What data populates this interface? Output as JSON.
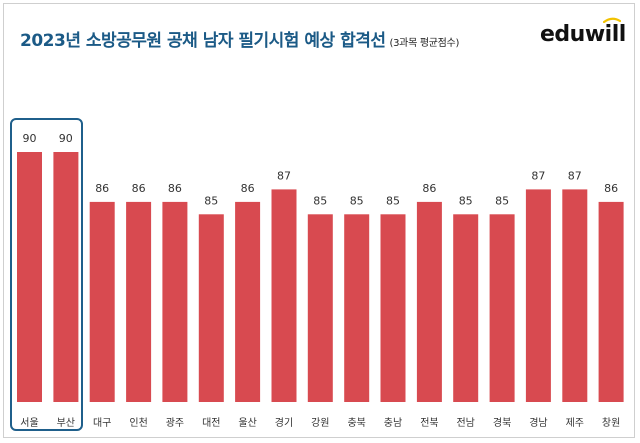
{
  "title": "2023년 소방공무원 공채 남자 필기시험 예상 합격선",
  "subtitle": "(3과목 평균점수)",
  "logo_text": "eduwill",
  "colors": {
    "bar": "#d84a50",
    "title": "#1b5a86",
    "highlight_box": "#1f5f8b",
    "logo_accent": "#f2c200"
  },
  "chart_data": {
    "type": "bar",
    "title": "2023년 소방공무원 공채 남자 필기시험 예상 합격선",
    "subtitle": "(3과목 평균점수)",
    "categories": [
      "서울",
      "부산",
      "대구",
      "인천",
      "광주",
      "대전",
      "울산",
      "경기",
      "강원",
      "충북",
      "충남",
      "전북",
      "전남",
      "경북",
      "경남",
      "제주",
      "창원"
    ],
    "values": [
      90,
      90,
      86,
      86,
      86,
      85,
      86,
      87,
      85,
      85,
      85,
      86,
      85,
      85,
      87,
      87,
      86
    ],
    "data_labels": true,
    "highlighted_categories": [
      "서울",
      "부산"
    ],
    "legend": "none",
    "grid": false
  }
}
